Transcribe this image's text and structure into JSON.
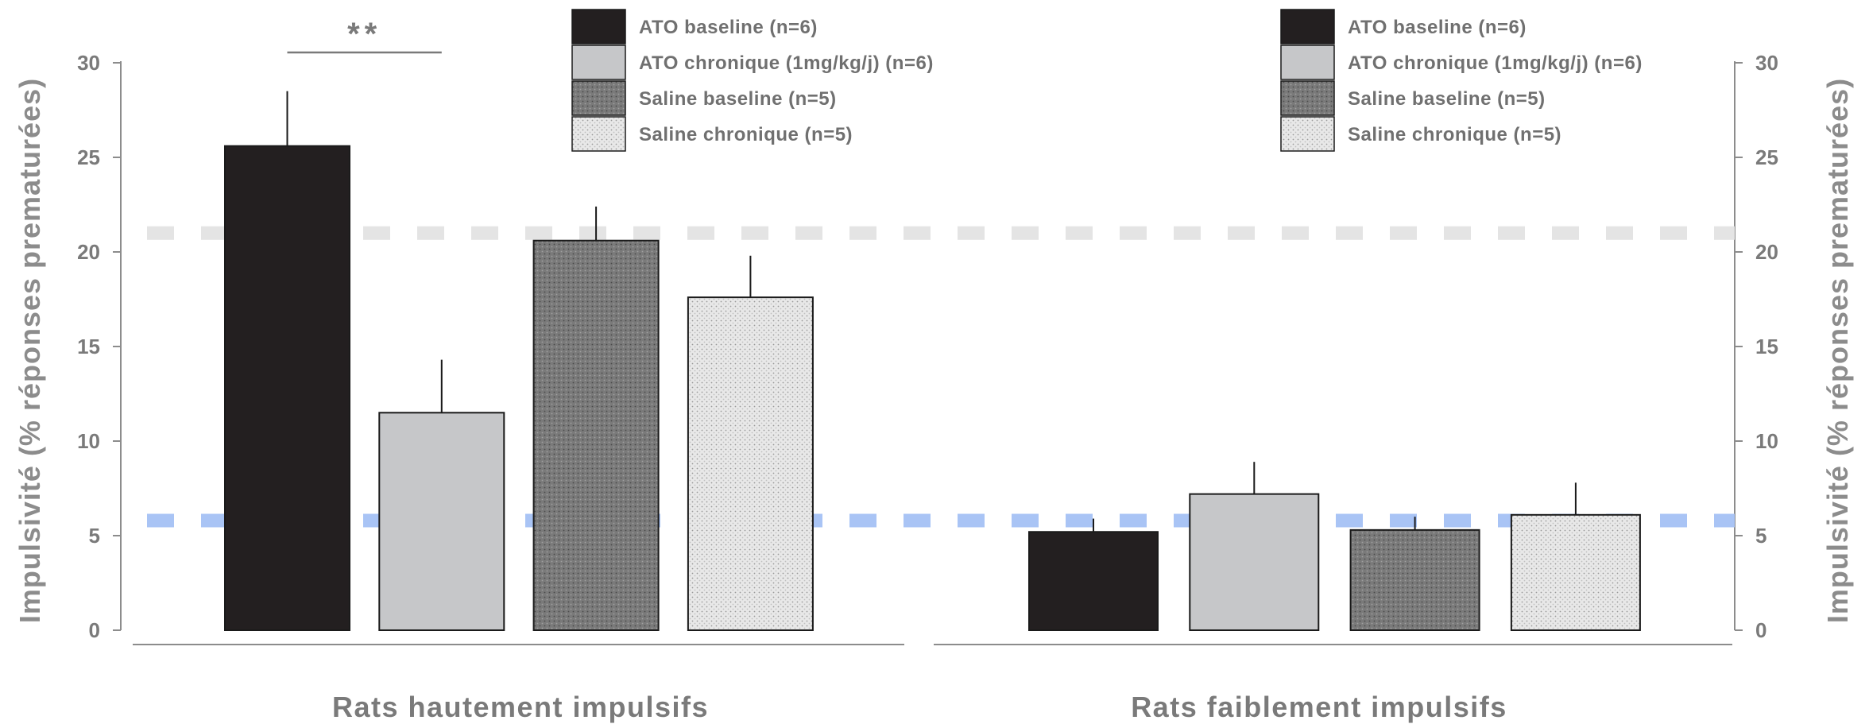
{
  "chart_data": {
    "type": "bar",
    "categories": [
      "Rats hautement impulsifs",
      "Rats faiblement impulsifs"
    ],
    "series": [
      {
        "name": "ATO baseline (n=6)",
        "values": [
          25.6,
          5.2
        ],
        "errors": [
          2.9,
          0.7
        ],
        "color": "#231f20",
        "pattern": "solid"
      },
      {
        "name": "ATO chronique (1mg/kg/j) (n=6)",
        "values": [
          11.5,
          7.2
        ],
        "errors": [
          2.8,
          1.7
        ],
        "color": "#c6c7c9",
        "pattern": "solid"
      },
      {
        "name": "Saline baseline (n=5)",
        "values": [
          20.6,
          5.3
        ],
        "errors": [
          1.8,
          0.7
        ],
        "color": "#7a7a7a",
        "pattern": "dots-dark"
      },
      {
        "name": "Saline chronique (n=5)",
        "values": [
          17.6,
          6.1
        ],
        "errors": [
          2.2,
          1.7
        ],
        "color": "#e6e6e6",
        "pattern": "dots-light"
      }
    ],
    "ylabel_left": "Impulsivité (% réponses prematurées)",
    "ylabel_right": "Impulsivité (% réponses prematurées)",
    "ylim": [
      0,
      30
    ],
    "yticks": [
      0,
      5,
      10,
      15,
      20,
      25,
      30
    ],
    "reference_lines": [
      {
        "value": 21.0,
        "color": "#e4e4e4"
      },
      {
        "value": 5.8,
        "color": "#a9c4f5"
      }
    ],
    "annotations": [
      {
        "text": "**",
        "group": 0,
        "from_series": 0,
        "to_series": 1
      }
    ],
    "legends": [
      {
        "group": 0,
        "position": "top-center"
      },
      {
        "group": 1,
        "position": "top-right"
      }
    ]
  }
}
